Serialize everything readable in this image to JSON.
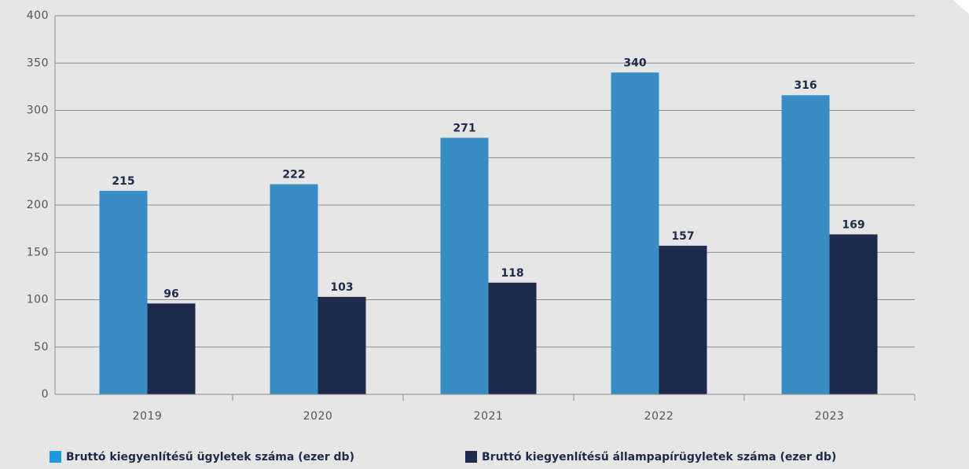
{
  "chart_data": {
    "type": "bar",
    "categories": [
      "2019",
      "2020",
      "2021",
      "2022",
      "2023"
    ],
    "series": [
      {
        "name": "Bruttó kiegyenlítésű ügyletek száma (ezer db)",
        "color": "#3a8cc4",
        "values": [
          215,
          222,
          271,
          340,
          316
        ]
      },
      {
        "name": "Bruttó kiegyenlítésű állampapírügyletek száma (ezer db)",
        "color": "#1d2a4b",
        "values": [
          96,
          103,
          118,
          157,
          169
        ]
      }
    ],
    "ylim": [
      0,
      400
    ],
    "yticks": [
      0,
      50,
      100,
      150,
      200,
      250,
      300,
      350,
      400
    ],
    "grid": true,
    "legend": "bottom"
  }
}
